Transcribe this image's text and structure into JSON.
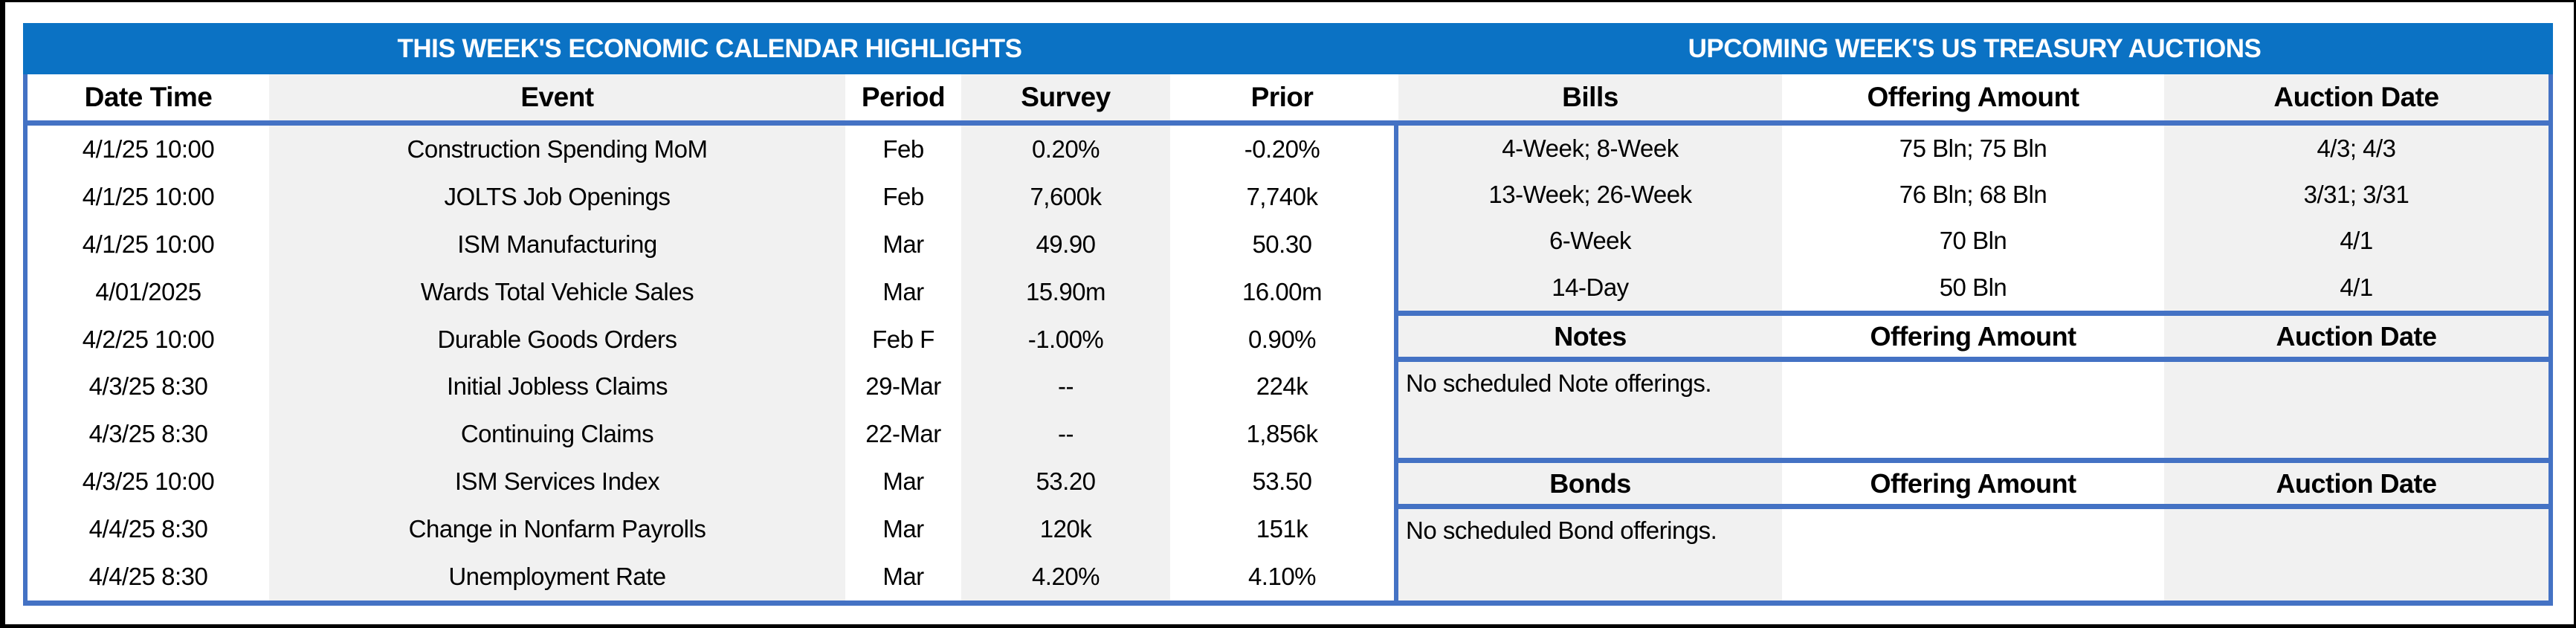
{
  "colors": {
    "title_bar_blue": "#0B72C4",
    "border_blue": "#4472C4",
    "alt_column_gray": "#F1F1F1",
    "frame_black": "#000000"
  },
  "left_table": {
    "title": "THIS WEEK'S ECONOMIC CALENDAR HIGHLIGHTS",
    "columns": [
      "Date Time",
      "Event",
      "Period",
      "Survey",
      "Prior"
    ],
    "rows": [
      {
        "date_time": "4/1/25 10:00",
        "event": "Construction Spending MoM",
        "period": "Feb",
        "survey": "0.20%",
        "prior": "-0.20%"
      },
      {
        "date_time": "4/1/25 10:00",
        "event": "JOLTS Job Openings",
        "period": "Feb",
        "survey": "7,600k",
        "prior": "7,740k"
      },
      {
        "date_time": "4/1/25 10:00",
        "event": "ISM Manufacturing",
        "period": "Mar",
        "survey": "49.90",
        "prior": "50.30"
      },
      {
        "date_time": "4/01/2025",
        "event": "Wards Total Vehicle Sales",
        "period": "Mar",
        "survey": "15.90m",
        "prior": "16.00m"
      },
      {
        "date_time": "4/2/25 10:00",
        "event": "Durable Goods Orders",
        "period": "Feb F",
        "survey": "-1.00%",
        "prior": "0.90%"
      },
      {
        "date_time": "4/3/25 8:30",
        "event": "Initial Jobless Claims",
        "period": "29-Mar",
        "survey": "--",
        "prior": "224k"
      },
      {
        "date_time": "4/3/25 8:30",
        "event": "Continuing Claims",
        "period": "22-Mar",
        "survey": "--",
        "prior": "1,856k"
      },
      {
        "date_time": "4/3/25 10:00",
        "event": "ISM Services Index",
        "period": "Mar",
        "survey": "53.20",
        "prior": "53.50"
      },
      {
        "date_time": "4/4/25 8:30",
        "event": "Change in Nonfarm Payrolls",
        "period": "Mar",
        "survey": "120k",
        "prior": "151k"
      },
      {
        "date_time": "4/4/25 8:30",
        "event": "Unemployment Rate",
        "period": "Mar",
        "survey": "4.20%",
        "prior": "4.10%"
      }
    ]
  },
  "right_table": {
    "title": "UPCOMING WEEK'S US TREASURY AUCTIONS",
    "bills": {
      "columns": [
        "Bills",
        "Offering Amount",
        "Auction Date"
      ],
      "rows": [
        {
          "term": "4-Week; 8-Week",
          "offering_amount": "75 Bln; 75 Bln",
          "auction_date": "4/3; 4/3"
        },
        {
          "term": "13-Week; 26-Week",
          "offering_amount": "76 Bln; 68 Bln",
          "auction_date": "3/31; 3/31"
        },
        {
          "term": "6-Week",
          "offering_amount": "70 Bln",
          "auction_date": "4/1"
        },
        {
          "term": "14-Day",
          "offering_amount": "50 Bln",
          "auction_date": "4/1"
        }
      ]
    },
    "notes": {
      "columns": [
        "Notes",
        "Offering Amount",
        "Auction Date"
      ],
      "message": "No scheduled Note offerings."
    },
    "bonds": {
      "columns": [
        "Bonds",
        "Offering Amount",
        "Auction Date"
      ],
      "message": "No scheduled Bond offerings."
    }
  }
}
